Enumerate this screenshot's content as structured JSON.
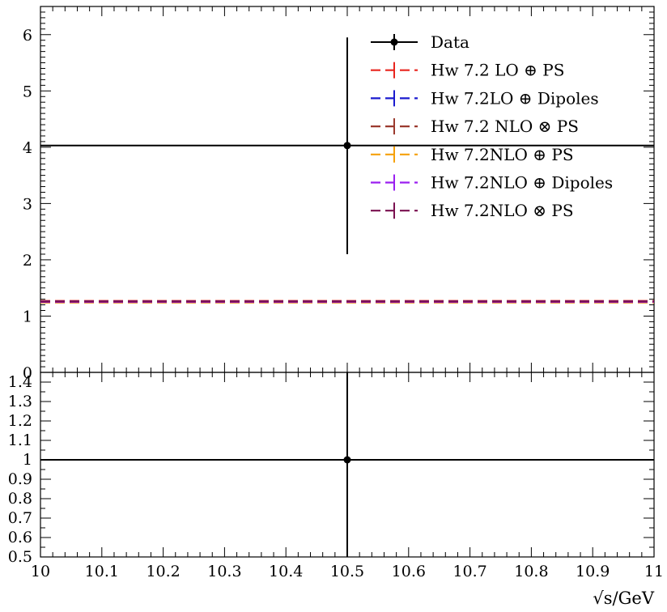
{
  "chart_data": [
    {
      "type": "line",
      "panel": "main",
      "xlim": [
        10,
        11
      ],
      "ylim": [
        0,
        6.5
      ],
      "yticks": [
        "0",
        "1",
        "2",
        "3",
        "4",
        "5",
        "6"
      ],
      "grid": false,
      "legend_position": "top-right",
      "series": [
        {
          "name": "Data",
          "color": "#000000",
          "style": "errorbar",
          "x": 10.5,
          "y": 4.03,
          "yerr_low": 2.1,
          "yerr_high": 5.95
        },
        {
          "name": "Hw 7.2 LO ⊕ PS",
          "color": "#e8251e",
          "style": "dashed",
          "y": 1.27
        },
        {
          "name": "Hw 7.2LO ⊕ Dipoles",
          "color": "#1a1acf",
          "style": "dashed",
          "y": 1.26
        },
        {
          "name": "Hw 7.2 NLO ⊗ PS",
          "color": "#9b3a2e",
          "style": "dashed",
          "y": 1.25
        },
        {
          "name": "Hw 7.2NLO ⊕ PS",
          "color": "#f5a00a",
          "style": "dashed",
          "y": 1.24
        },
        {
          "name": "Hw 7.2NLO ⊕ Dipoles",
          "color": "#9a1ff0",
          "style": "dashed",
          "y": 1.25
        },
        {
          "name": "Hw 7.2NLO ⊗ PS",
          "color": "#7a1150",
          "style": "dashed",
          "y": 1.26
        }
      ]
    },
    {
      "type": "line",
      "panel": "ratio",
      "xlim": [
        10,
        11
      ],
      "ylim": [
        0.5,
        1.45
      ],
      "yticks": [
        "0.5",
        "0.6",
        "0.7",
        "0.8",
        "0.9",
        "1",
        "1.1",
        "1.2",
        "1.3",
        "1.4"
      ],
      "xticks": [
        "10",
        "10.1",
        "10.2",
        "10.3",
        "10.4",
        "10.5",
        "10.6",
        "10.7",
        "10.8",
        "10.9",
        "11"
      ],
      "xlabel": "√s/GeV",
      "series": [
        {
          "name": "Data",
          "color": "#000000",
          "style": "errorbar",
          "x": 10.5,
          "y": 1.0,
          "yerr_low": 0.5,
          "yerr_high": 1.45
        }
      ]
    }
  ]
}
